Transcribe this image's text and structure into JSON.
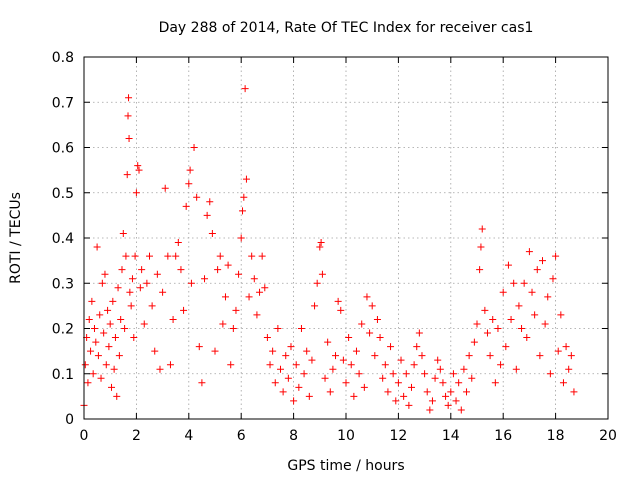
{
  "chart_data": {
    "type": "scatter",
    "title": "Day 288 of 2014, Rate Of TEC Index for receiver cas1",
    "xlabel": "GPS time / hours",
    "ylabel": "ROTI / TECUs",
    "xlim": [
      0,
      20
    ],
    "ylim": [
      0,
      0.8
    ],
    "x_ticks": [
      "0",
      "2",
      "4",
      "6",
      "8",
      "10",
      "12",
      "14",
      "16",
      "18",
      "20"
    ],
    "y_ticks": [
      "0",
      "0.1",
      "0.2",
      "0.3",
      "0.4",
      "0.5",
      "0.6",
      "0.7",
      "0.8"
    ],
    "grid": true,
    "marker": "+",
    "marker_color": "#ff0000",
    "series": [
      {
        "name": "ROTI",
        "points": [
          [
            0.0,
            0.03
          ],
          [
            0.05,
            0.12
          ],
          [
            0.1,
            0.18
          ],
          [
            0.15,
            0.08
          ],
          [
            0.2,
            0.22
          ],
          [
            0.25,
            0.15
          ],
          [
            0.3,
            0.26
          ],
          [
            0.35,
            0.1
          ],
          [
            0.4,
            0.2
          ],
          [
            0.45,
            0.17
          ],
          [
            0.5,
            0.38
          ],
          [
            0.55,
            0.14
          ],
          [
            0.6,
            0.23
          ],
          [
            0.65,
            0.09
          ],
          [
            0.7,
            0.3
          ],
          [
            0.75,
            0.19
          ],
          [
            0.8,
            0.32
          ],
          [
            0.85,
            0.12
          ],
          [
            0.9,
            0.24
          ],
          [
            0.95,
            0.16
          ],
          [
            1.0,
            0.21
          ],
          [
            1.05,
            0.07
          ],
          [
            1.1,
            0.26
          ],
          [
            1.15,
            0.11
          ],
          [
            1.2,
            0.18
          ],
          [
            1.25,
            0.05
          ],
          [
            1.3,
            0.29
          ],
          [
            1.35,
            0.14
          ],
          [
            1.4,
            0.22
          ],
          [
            1.45,
            0.33
          ],
          [
            1.5,
            0.41
          ],
          [
            1.55,
            0.2
          ],
          [
            1.6,
            0.36
          ],
          [
            1.65,
            0.54
          ],
          [
            1.68,
            0.67
          ],
          [
            1.7,
            0.71
          ],
          [
            1.72,
            0.62
          ],
          [
            1.75,
            0.28
          ],
          [
            1.8,
            0.25
          ],
          [
            1.85,
            0.31
          ],
          [
            1.9,
            0.18
          ],
          [
            1.95,
            0.36
          ],
          [
            2.0,
            0.5
          ],
          [
            2.05,
            0.56
          ],
          [
            2.1,
            0.55
          ],
          [
            2.15,
            0.29
          ],
          [
            2.2,
            0.33
          ],
          [
            2.3,
            0.21
          ],
          [
            2.4,
            0.3
          ],
          [
            2.5,
            0.36
          ],
          [
            2.6,
            0.25
          ],
          [
            2.7,
            0.15
          ],
          [
            2.8,
            0.32
          ],
          [
            2.9,
            0.11
          ],
          [
            3.0,
            0.28
          ],
          [
            3.1,
            0.51
          ],
          [
            3.2,
            0.36
          ],
          [
            3.3,
            0.12
          ],
          [
            3.4,
            0.22
          ],
          [
            3.5,
            0.36
          ],
          [
            3.6,
            0.39
          ],
          [
            3.7,
            0.33
          ],
          [
            3.8,
            0.24
          ],
          [
            3.9,
            0.47
          ],
          [
            4.0,
            0.52
          ],
          [
            4.05,
            0.55
          ],
          [
            4.1,
            0.3
          ],
          [
            4.2,
            0.6
          ],
          [
            4.3,
            0.49
          ],
          [
            4.4,
            0.16
          ],
          [
            4.5,
            0.08
          ],
          [
            4.6,
            0.31
          ],
          [
            4.7,
            0.45
          ],
          [
            4.8,
            0.48
          ],
          [
            4.9,
            0.41
          ],
          [
            5.0,
            0.15
          ],
          [
            5.1,
            0.33
          ],
          [
            5.2,
            0.36
          ],
          [
            5.3,
            0.21
          ],
          [
            5.4,
            0.27
          ],
          [
            5.5,
            0.34
          ],
          [
            5.6,
            0.12
          ],
          [
            5.7,
            0.2
          ],
          [
            5.8,
            0.24
          ],
          [
            5.9,
            0.32
          ],
          [
            6.0,
            0.4
          ],
          [
            6.05,
            0.46
          ],
          [
            6.1,
            0.49
          ],
          [
            6.15,
            0.73
          ],
          [
            6.2,
            0.53
          ],
          [
            6.3,
            0.27
          ],
          [
            6.4,
            0.36
          ],
          [
            6.5,
            0.31
          ],
          [
            6.6,
            0.23
          ],
          [
            6.7,
            0.28
          ],
          [
            6.8,
            0.36
          ],
          [
            6.9,
            0.29
          ],
          [
            7.0,
            0.18
          ],
          [
            7.1,
            0.12
          ],
          [
            7.2,
            0.15
          ],
          [
            7.3,
            0.08
          ],
          [
            7.4,
            0.2
          ],
          [
            7.5,
            0.11
          ],
          [
            7.6,
            0.06
          ],
          [
            7.7,
            0.14
          ],
          [
            7.8,
            0.09
          ],
          [
            7.9,
            0.16
          ],
          [
            8.0,
            0.04
          ],
          [
            8.1,
            0.12
          ],
          [
            8.2,
            0.07
          ],
          [
            8.3,
            0.2
          ],
          [
            8.4,
            0.1
          ],
          [
            8.5,
            0.15
          ],
          [
            8.6,
            0.05
          ],
          [
            8.7,
            0.13
          ],
          [
            8.8,
            0.25
          ],
          [
            8.9,
            0.3
          ],
          [
            9.0,
            0.38
          ],
          [
            9.05,
            0.39
          ],
          [
            9.1,
            0.32
          ],
          [
            9.2,
            0.09
          ],
          [
            9.3,
            0.17
          ],
          [
            9.4,
            0.06
          ],
          [
            9.5,
            0.11
          ],
          [
            9.6,
            0.14
          ],
          [
            9.7,
            0.26
          ],
          [
            9.8,
            0.24
          ],
          [
            9.9,
            0.13
          ],
          [
            10.0,
            0.08
          ],
          [
            10.1,
            0.18
          ],
          [
            10.2,
            0.12
          ],
          [
            10.3,
            0.05
          ],
          [
            10.4,
            0.15
          ],
          [
            10.5,
            0.1
          ],
          [
            10.6,
            0.21
          ],
          [
            10.7,
            0.07
          ],
          [
            10.8,
            0.27
          ],
          [
            10.9,
            0.19
          ],
          [
            11.0,
            0.25
          ],
          [
            11.1,
            0.14
          ],
          [
            11.2,
            0.22
          ],
          [
            11.3,
            0.18
          ],
          [
            11.4,
            0.09
          ],
          [
            11.5,
            0.12
          ],
          [
            11.6,
            0.06
          ],
          [
            11.7,
            0.16
          ],
          [
            11.8,
            0.1
          ],
          [
            11.9,
            0.04
          ],
          [
            12.0,
            0.08
          ],
          [
            12.1,
            0.13
          ],
          [
            12.2,
            0.05
          ],
          [
            12.3,
            0.1
          ],
          [
            12.4,
            0.03
          ],
          [
            12.5,
            0.07
          ],
          [
            12.6,
            0.12
          ],
          [
            12.7,
            0.16
          ],
          [
            12.8,
            0.19
          ],
          [
            12.9,
            0.14
          ],
          [
            13.0,
            0.1
          ],
          [
            13.1,
            0.06
          ],
          [
            13.2,
            0.02
          ],
          [
            13.3,
            0.04
          ],
          [
            13.4,
            0.09
          ],
          [
            13.5,
            0.13
          ],
          [
            13.6,
            0.11
          ],
          [
            13.7,
            0.08
          ],
          [
            13.8,
            0.05
          ],
          [
            13.9,
            0.03
          ],
          [
            14.0,
            0.06
          ],
          [
            14.1,
            0.1
          ],
          [
            14.2,
            0.04
          ],
          [
            14.3,
            0.08
          ],
          [
            14.4,
            0.02
          ],
          [
            14.5,
            0.11
          ],
          [
            14.6,
            0.06
          ],
          [
            14.7,
            0.14
          ],
          [
            14.8,
            0.09
          ],
          [
            14.9,
            0.17
          ],
          [
            15.0,
            0.21
          ],
          [
            15.1,
            0.33
          ],
          [
            15.15,
            0.38
          ],
          [
            15.2,
            0.42
          ],
          [
            15.3,
            0.24
          ],
          [
            15.4,
            0.19
          ],
          [
            15.5,
            0.14
          ],
          [
            15.6,
            0.22
          ],
          [
            15.7,
            0.08
          ],
          [
            15.8,
            0.2
          ],
          [
            15.9,
            0.12
          ],
          [
            16.0,
            0.28
          ],
          [
            16.1,
            0.16
          ],
          [
            16.2,
            0.34
          ],
          [
            16.3,
            0.22
          ],
          [
            16.4,
            0.3
          ],
          [
            16.5,
            0.11
          ],
          [
            16.6,
            0.25
          ],
          [
            16.7,
            0.2
          ],
          [
            16.8,
            0.3
          ],
          [
            16.9,
            0.18
          ],
          [
            17.0,
            0.37
          ],
          [
            17.1,
            0.28
          ],
          [
            17.2,
            0.23
          ],
          [
            17.3,
            0.33
          ],
          [
            17.4,
            0.14
          ],
          [
            17.5,
            0.35
          ],
          [
            17.6,
            0.21
          ],
          [
            17.7,
            0.27
          ],
          [
            17.8,
            0.1
          ],
          [
            17.9,
            0.31
          ],
          [
            18.0,
            0.36
          ],
          [
            18.1,
            0.15
          ],
          [
            18.2,
            0.23
          ],
          [
            18.3,
            0.08
          ],
          [
            18.4,
            0.16
          ],
          [
            18.5,
            0.11
          ],
          [
            18.6,
            0.14
          ],
          [
            18.7,
            0.06
          ]
        ]
      }
    ]
  }
}
